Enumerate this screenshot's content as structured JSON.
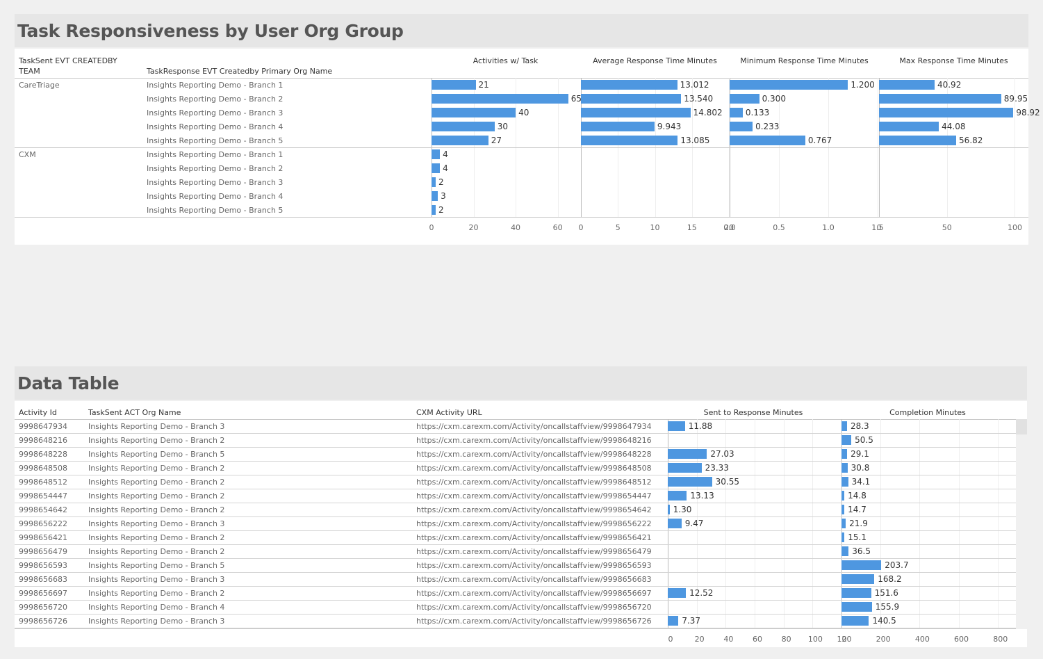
{
  "summary": {
    "title": "Task Responsiveness by User Org Group",
    "headers": {
      "team": "TaskSent EVT CREATEDBY TEAM",
      "org": "TaskResponse EVT Createdby Primary Org Name",
      "activities": "Activities w/ Task",
      "avg": "Average Response Time Minutes",
      "min": "Minimum Response Time Minutes",
      "max": "Max Response Time Minutes"
    }
  },
  "detail": {
    "title": "Data Table",
    "headers": {
      "activity_id": "Activity Id",
      "org": "TaskSent ACT Org Name",
      "url": "CXM Activity URL",
      "sent": "Sent to Response Minutes",
      "completion": "Completion Minutes"
    }
  },
  "chart_data": [
    {
      "type": "bar",
      "orientation": "horizontal",
      "groups": [
        {
          "team": "CareTriage",
          "rows": [
            {
              "org": "Insights Reporting Demo - Branch 1",
              "activities": 21,
              "avg": 13.012,
              "min": 1.2,
              "max": 40.92,
              "labels": {
                "activities": "21",
                "avg": "13.012",
                "min": "1.200",
                "max": "40.92"
              }
            },
            {
              "org": "Insights Reporting Demo - Branch 2",
              "activities": 65,
              "avg": 13.54,
              "min": 0.3,
              "max": 89.95,
              "labels": {
                "activities": "65",
                "avg": "13.540",
                "min": "0.300",
                "max": "89.95"
              }
            },
            {
              "org": "Insights Reporting Demo - Branch 3",
              "activities": 40,
              "avg": 14.802,
              "min": 0.133,
              "max": 98.92,
              "labels": {
                "activities": "40",
                "avg": "14.802",
                "min": "0.133",
                "max": "98.92"
              }
            },
            {
              "org": "Insights Reporting Demo - Branch 4",
              "activities": 30,
              "avg": 9.943,
              "min": 0.233,
              "max": 44.08,
              "labels": {
                "activities": "30",
                "avg": "9.943",
                "min": "0.233",
                "max": "44.08"
              }
            },
            {
              "org": "Insights Reporting Demo - Branch 5",
              "activities": 27,
              "avg": 13.085,
              "min": 0.767,
              "max": 56.82,
              "labels": {
                "activities": "27",
                "avg": "13.085",
                "min": "0.767",
                "max": "56.82"
              }
            }
          ]
        },
        {
          "team": "CXM",
          "rows": [
            {
              "org": "Insights Reporting Demo - Branch 1",
              "activities": 4,
              "avg": 0,
              "min": 0,
              "max": 0,
              "labels": {
                "activities": "4",
                "avg": "",
                "min": "",
                "max": ""
              }
            },
            {
              "org": "Insights Reporting Demo - Branch 2",
              "activities": 4,
              "avg": 0,
              "min": 0,
              "max": 0,
              "labels": {
                "activities": "4",
                "avg": "",
                "min": "",
                "max": ""
              }
            },
            {
              "org": "Insights Reporting Demo - Branch 3",
              "activities": 2,
              "avg": 0,
              "min": 0,
              "max": 0,
              "labels": {
                "activities": "2",
                "avg": "",
                "min": "",
                "max": ""
              }
            },
            {
              "org": "Insights Reporting Demo - Branch 4",
              "activities": 3,
              "avg": 0,
              "min": 0,
              "max": 0,
              "labels": {
                "activities": "3",
                "avg": "",
                "min": "",
                "max": ""
              }
            },
            {
              "org": "Insights Reporting Demo - Branch 5",
              "activities": 2,
              "avg": 0,
              "min": 0,
              "max": 0,
              "labels": {
                "activities": "2",
                "avg": "",
                "min": "",
                "max": ""
              }
            }
          ]
        }
      ],
      "axes": {
        "activities": {
          "range": [
            0,
            75
          ],
          "ticks": [
            "0",
            "20",
            "40",
            "60"
          ],
          "tick_values": [
            0,
            20,
            40,
            60
          ]
        },
        "avg": {
          "range": [
            0,
            20
          ],
          "ticks": [
            "0",
            "5",
            "10",
            "15",
            "20"
          ],
          "tick_values": [
            0,
            5,
            10,
            15,
            20
          ]
        },
        "min": {
          "range": [
            0,
            1.5
          ],
          "ticks": [
            "0.0",
            "0.5",
            "1.0",
            "1.5"
          ],
          "tick_values": [
            0,
            0.5,
            1.0,
            1.5
          ]
        },
        "max": {
          "range": [
            0,
            110
          ],
          "ticks": [
            "0",
            "50",
            "100"
          ],
          "tick_values": [
            0,
            50,
            100
          ]
        }
      }
    },
    {
      "type": "table",
      "rows": [
        {
          "id": "9998647934",
          "org": "Insights Reporting Demo - Branch 3",
          "url": "https://cxm.carexm.com/Activity/oncallstaffview/9998647934",
          "sent": 11.88,
          "sent_label": "11.88",
          "completion": 28.3,
          "completion_label": "28.3"
        },
        {
          "id": "9998648216",
          "org": "Insights Reporting Demo - Branch 2",
          "url": "https://cxm.carexm.com/Activity/oncallstaffview/9998648216",
          "sent": 0,
          "sent_label": "",
          "completion": 50.5,
          "completion_label": "50.5"
        },
        {
          "id": "9998648228",
          "org": "Insights Reporting Demo - Branch 5",
          "url": "https://cxm.carexm.com/Activity/oncallstaffview/9998648228",
          "sent": 27.03,
          "sent_label": "27.03",
          "completion": 29.1,
          "completion_label": "29.1"
        },
        {
          "id": "9998648508",
          "org": "Insights Reporting Demo - Branch 2",
          "url": "https://cxm.carexm.com/Activity/oncallstaffview/9998648508",
          "sent": 23.33,
          "sent_label": "23.33",
          "completion": 30.8,
          "completion_label": "30.8"
        },
        {
          "id": "9998648512",
          "org": "Insights Reporting Demo - Branch 2",
          "url": "https://cxm.carexm.com/Activity/oncallstaffview/9998648512",
          "sent": 30.55,
          "sent_label": "30.55",
          "completion": 34.1,
          "completion_label": "34.1"
        },
        {
          "id": "9998654447",
          "org": "Insights Reporting Demo - Branch 2",
          "url": "https://cxm.carexm.com/Activity/oncallstaffview/9998654447",
          "sent": 13.13,
          "sent_label": "13.13",
          "completion": 14.8,
          "completion_label": "14.8"
        },
        {
          "id": "9998654642",
          "org": "Insights Reporting Demo - Branch 2",
          "url": "https://cxm.carexm.com/Activity/oncallstaffview/9998654642",
          "sent": 1.3,
          "sent_label": "1.30",
          "completion": 14.7,
          "completion_label": "14.7"
        },
        {
          "id": "9998656222",
          "org": "Insights Reporting Demo - Branch 3",
          "url": "https://cxm.carexm.com/Activity/oncallstaffview/9998656222",
          "sent": 9.47,
          "sent_label": "9.47",
          "completion": 21.9,
          "completion_label": "21.9"
        },
        {
          "id": "9998656421",
          "org": "Insights Reporting Demo - Branch 2",
          "url": "https://cxm.carexm.com/Activity/oncallstaffview/9998656421",
          "sent": 0,
          "sent_label": "",
          "completion": 15.1,
          "completion_label": "15.1"
        },
        {
          "id": "9998656479",
          "org": "Insights Reporting Demo - Branch 2",
          "url": "https://cxm.carexm.com/Activity/oncallstaffview/9998656479",
          "sent": 0,
          "sent_label": "",
          "completion": 36.5,
          "completion_label": "36.5"
        },
        {
          "id": "9998656593",
          "org": "Insights Reporting Demo - Branch 5",
          "url": "https://cxm.carexm.com/Activity/oncallstaffview/9998656593",
          "sent": 0,
          "sent_label": "",
          "completion": 203.7,
          "completion_label": "203.7"
        },
        {
          "id": "9998656683",
          "org": "Insights Reporting Demo - Branch 3",
          "url": "https://cxm.carexm.com/Activity/oncallstaffview/9998656683",
          "sent": 0,
          "sent_label": "",
          "completion": 168.2,
          "completion_label": "168.2"
        },
        {
          "id": "9998656697",
          "org": "Insights Reporting Demo - Branch 2",
          "url": "https://cxm.carexm.com/Activity/oncallstaffview/9998656697",
          "sent": 12.52,
          "sent_label": "12.52",
          "completion": 151.6,
          "completion_label": "151.6"
        },
        {
          "id": "9998656720",
          "org": "Insights Reporting Demo - Branch 4",
          "url": "https://cxm.carexm.com/Activity/oncallstaffview/9998656720",
          "sent": 0,
          "sent_label": "",
          "completion": 155.9,
          "completion_label": "155.9"
        },
        {
          "id": "9998656726",
          "org": "Insights Reporting Demo - Branch 3",
          "url": "https://cxm.carexm.com/Activity/oncallstaffview/9998656726",
          "sent": 7.37,
          "sent_label": "7.37",
          "completion": 140.5,
          "completion_label": "140.5"
        }
      ],
      "axes": {
        "sent": {
          "range": [
            0,
            120
          ],
          "ticks": [
            "0",
            "20",
            "40",
            "60",
            "80",
            "100",
            "120"
          ],
          "tick_values": [
            0,
            20,
            40,
            60,
            80,
            100,
            120
          ]
        },
        "completion": {
          "range": [
            0,
            890
          ],
          "ticks": [
            "0",
            "200",
            "400",
            "600",
            "800"
          ],
          "tick_values": [
            0,
            200,
            400,
            600,
            800
          ]
        }
      }
    }
  ],
  "colors": {
    "bar": "#4e97e0"
  }
}
